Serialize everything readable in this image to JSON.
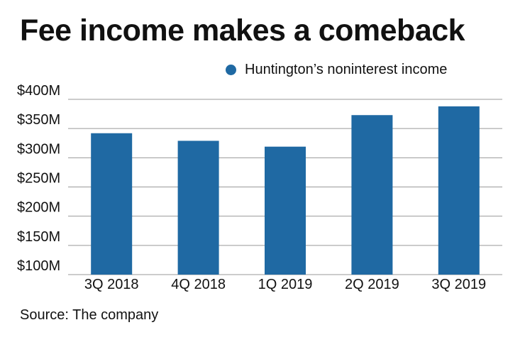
{
  "chart_data": {
    "type": "bar",
    "title": "Fee income makes a comeback",
    "categories": [
      "3Q 2018",
      "4Q 2018",
      "1Q 2019",
      "2Q 2019",
      "3Q 2019"
    ],
    "series": [
      {
        "name": "Huntington’s noninterest income",
        "values": [
          342,
          329,
          319,
          373,
          388
        ]
      }
    ],
    "ylim": [
      100,
      400
    ],
    "yticks": [
      100,
      150,
      200,
      250,
      300,
      350,
      400
    ],
    "ytick_labels": [
      "$100M",
      "$150M",
      "$200M",
      "$250M",
      "$300M",
      "$350M",
      "$400M"
    ],
    "grid": true,
    "legend_position": "top",
    "xlabel": "",
    "ylabel": "",
    "source": "Source: The company",
    "colors": {
      "bar": "#1f69a3",
      "grid": "#999999",
      "text": "#111111"
    }
  }
}
